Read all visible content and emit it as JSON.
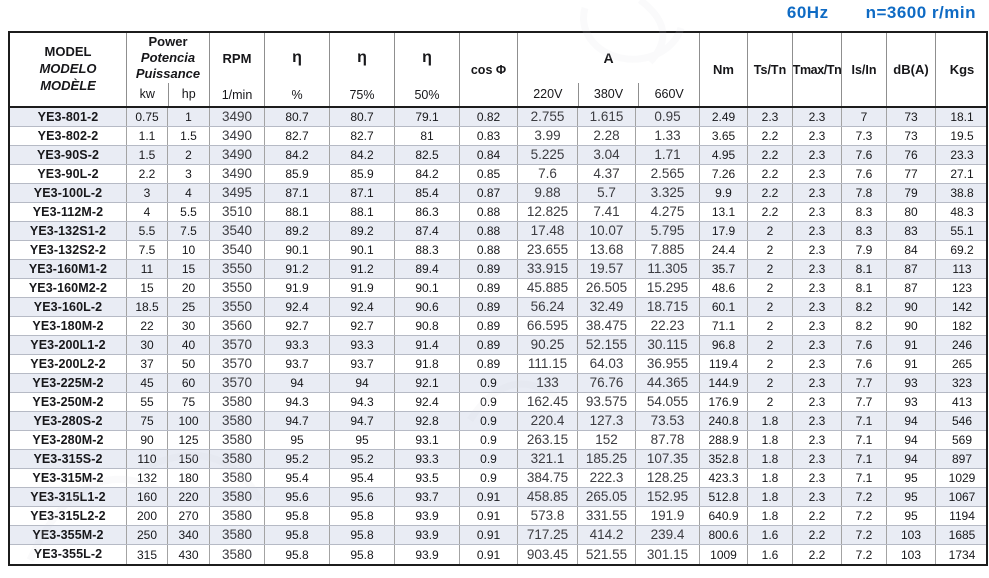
{
  "page": {
    "frequency": "60Hz",
    "speed": "n=3600 r/min",
    "accent_color": "#0f6bc4",
    "shade_color": "#e9ecf4"
  },
  "table": {
    "header": {
      "model_lines": [
        "MODEL",
        "MODELO",
        "MODÈLE"
      ],
      "power_lines": [
        "Power",
        "Potencia",
        "Puissance"
      ],
      "power_units": [
        "kw",
        "hp"
      ],
      "rpm_label": "RPM",
      "rpm_unit": "1/min",
      "eta_symbol": "η",
      "eta_subs": [
        "%",
        "75%",
        "50%"
      ],
      "cos_phi": "cos Φ",
      "current_label": "A",
      "voltages": [
        "220V",
        "380V",
        "660V"
      ],
      "torque": "Nm",
      "ts_tn": "Ts/Tn",
      "tmax_tn": "Tmax/Tn",
      "is_in": "Is/In",
      "db": "dB(A)",
      "kgs": "Kgs"
    },
    "column_keys": [
      "model",
      "kw",
      "hp",
      "rpm",
      "eta-100",
      "eta-75",
      "eta-50",
      "cos-phi",
      "a-220v",
      "a-380v",
      "a-660v",
      "nm",
      "ts-tn",
      "tmax-tn",
      "is-in",
      "db",
      "kgs"
    ],
    "rows": [
      [
        "YE3-801-2",
        "0.75",
        "1",
        "3490",
        "80.7",
        "80.7",
        "79.1",
        "0.82",
        "2.755",
        "1.615",
        "0.95",
        "2.49",
        "2.3",
        "2.3",
        "7",
        "73",
        "18.1"
      ],
      [
        "YE3-802-2",
        "1.1",
        "1.5",
        "3490",
        "82.7",
        "82.7",
        "81",
        "0.83",
        "3.99",
        "2.28",
        "1.33",
        "3.65",
        "2.2",
        "2.3",
        "7.3",
        "73",
        "19.5"
      ],
      [
        "YE3-90S-2",
        "1.5",
        "2",
        "3490",
        "84.2",
        "84.2",
        "82.5",
        "0.84",
        "5.225",
        "3.04",
        "1.71",
        "4.95",
        "2.2",
        "2.3",
        "7.6",
        "76",
        "23.3"
      ],
      [
        "YE3-90L-2",
        "2.2",
        "3",
        "3490",
        "85.9",
        "85.9",
        "84.2",
        "0.85",
        "7.6",
        "4.37",
        "2.565",
        "7.26",
        "2.2",
        "2.3",
        "7.6",
        "77",
        "27.1"
      ],
      [
        "YE3-100L-2",
        "3",
        "4",
        "3495",
        "87.1",
        "87.1",
        "85.4",
        "0.87",
        "9.88",
        "5.7",
        "3.325",
        "9.9",
        "2.2",
        "2.3",
        "7.8",
        "79",
        "38.8"
      ],
      [
        "YE3-112M-2",
        "4",
        "5.5",
        "3510",
        "88.1",
        "88.1",
        "86.3",
        "0.88",
        "12.825",
        "7.41",
        "4.275",
        "13.1",
        "2.2",
        "2.3",
        "8.3",
        "80",
        "48.3"
      ],
      [
        "YE3-132S1-2",
        "5.5",
        "7.5",
        "3540",
        "89.2",
        "89.2",
        "87.4",
        "0.88",
        "17.48",
        "10.07",
        "5.795",
        "17.9",
        "2",
        "2.3",
        "8.3",
        "83",
        "55.1"
      ],
      [
        "YE3-132S2-2",
        "7.5",
        "10",
        "3540",
        "90.1",
        "90.1",
        "88.3",
        "0.88",
        "23.655",
        "13.68",
        "7.885",
        "24.4",
        "2",
        "2.3",
        "7.9",
        "84",
        "69.2"
      ],
      [
        "YE3-160M1-2",
        "11",
        "15",
        "3550",
        "91.2",
        "91.2",
        "89.4",
        "0.89",
        "33.915",
        "19.57",
        "11.305",
        "35.7",
        "2",
        "2.3",
        "8.1",
        "87",
        "113"
      ],
      [
        "YE3-160M2-2",
        "15",
        "20",
        "3550",
        "91.9",
        "91.9",
        "90.1",
        "0.89",
        "45.885",
        "26.505",
        "15.295",
        "48.6",
        "2",
        "2.3",
        "8.1",
        "87",
        "123"
      ],
      [
        "YE3-160L-2",
        "18.5",
        "25",
        "3550",
        "92.4",
        "92.4",
        "90.6",
        "0.89",
        "56.24",
        "32.49",
        "18.715",
        "60.1",
        "2",
        "2.3",
        "8.2",
        "90",
        "142"
      ],
      [
        "YE3-180M-2",
        "22",
        "30",
        "3560",
        "92.7",
        "92.7",
        "90.8",
        "0.89",
        "66.595",
        "38.475",
        "22.23",
        "71.1",
        "2",
        "2.3",
        "8.2",
        "90",
        "182"
      ],
      [
        "YE3-200L1-2",
        "30",
        "40",
        "3570",
        "93.3",
        "93.3",
        "91.4",
        "0.89",
        "90.25",
        "52.155",
        "30.115",
        "96.8",
        "2",
        "2.3",
        "7.6",
        "91",
        "246"
      ],
      [
        "YE3-200L2-2",
        "37",
        "50",
        "3570",
        "93.7",
        "93.7",
        "91.8",
        "0.89",
        "111.15",
        "64.03",
        "36.955",
        "119.4",
        "2",
        "2.3",
        "7.6",
        "91",
        "265"
      ],
      [
        "YE3-225M-2",
        "45",
        "60",
        "3570",
        "94",
        "94",
        "92.1",
        "0.9",
        "133",
        "76.76",
        "44.365",
        "144.9",
        "2",
        "2.3",
        "7.7",
        "93",
        "323"
      ],
      [
        "YE3-250M-2",
        "55",
        "75",
        "3580",
        "94.3",
        "94.3",
        "92.4",
        "0.9",
        "162.45",
        "93.575",
        "54.055",
        "176.9",
        "2",
        "2.3",
        "7.7",
        "93",
        "413"
      ],
      [
        "YE3-280S-2",
        "75",
        "100",
        "3580",
        "94.7",
        "94.7",
        "92.8",
        "0.9",
        "220.4",
        "127.3",
        "73.53",
        "240.8",
        "1.8",
        "2.3",
        "7.1",
        "94",
        "546"
      ],
      [
        "YE3-280M-2",
        "90",
        "125",
        "3580",
        "95",
        "95",
        "93.1",
        "0.9",
        "263.15",
        "152",
        "87.78",
        "288.9",
        "1.8",
        "2.3",
        "7.1",
        "94",
        "569"
      ],
      [
        "YE3-315S-2",
        "110",
        "150",
        "3580",
        "95.2",
        "95.2",
        "93.3",
        "0.9",
        "321.1",
        "185.25",
        "107.35",
        "352.8",
        "1.8",
        "2.3",
        "7.1",
        "94",
        "897"
      ],
      [
        "YE3-315M-2",
        "132",
        "180",
        "3580",
        "95.4",
        "95.4",
        "93.5",
        "0.9",
        "384.75",
        "222.3",
        "128.25",
        "423.3",
        "1.8",
        "2.3",
        "7.1",
        "95",
        "1029"
      ],
      [
        "YE3-315L1-2",
        "160",
        "220",
        "3580",
        "95.6",
        "95.6",
        "93.7",
        "0.91",
        "458.85",
        "265.05",
        "152.95",
        "512.8",
        "1.8",
        "2.3",
        "7.2",
        "95",
        "1067"
      ],
      [
        "YE3-315L2-2",
        "200",
        "270",
        "3580",
        "95.8",
        "95.8",
        "93.9",
        "0.91",
        "573.8",
        "331.55",
        "191.9",
        "640.9",
        "1.8",
        "2.2",
        "7.2",
        "95",
        "1194"
      ],
      [
        "YE3-355M-2",
        "250",
        "340",
        "3580",
        "95.8",
        "95.8",
        "93.9",
        "0.91",
        "717.25",
        "414.2",
        "239.4",
        "800.6",
        "1.6",
        "2.2",
        "7.2",
        "103",
        "1685"
      ],
      [
        "YE3-355L-2",
        "315",
        "430",
        "3580",
        "95.8",
        "95.8",
        "93.9",
        "0.91",
        "903.45",
        "521.55",
        "301.15",
        "1009",
        "1.6",
        "2.2",
        "7.2",
        "103",
        "1734"
      ]
    ]
  }
}
